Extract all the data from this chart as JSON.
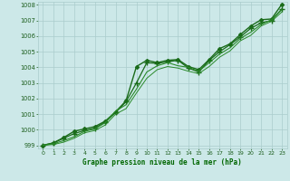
{
  "bg_color": "#cce8e8",
  "grid_color": "#aacccc",
  "text_color": "#1a5c1a",
  "label_color": "#006600",
  "xlim": [
    -0.5,
    23.5
  ],
  "ylim": [
    998.8,
    1008.2
  ],
  "yticks": [
    999,
    1000,
    1001,
    1002,
    1003,
    1004,
    1005,
    1006,
    1007,
    1008
  ],
  "xticks": [
    0,
    1,
    2,
    3,
    4,
    5,
    6,
    7,
    8,
    9,
    10,
    11,
    12,
    13,
    14,
    15,
    16,
    17,
    18,
    19,
    20,
    21,
    22,
    23
  ],
  "xlabel": "Graphe pression niveau de la mer (hPa)",
  "series": [
    {
      "x": [
        0,
        1,
        2,
        3,
        4,
        5,
        6,
        7,
        8,
        9,
        10,
        11,
        12,
        13,
        14,
        15,
        16,
        17,
        18,
        19,
        20,
        21,
        22,
        23
      ],
      "y": [
        999.0,
        999.15,
        999.5,
        999.9,
        1000.05,
        1000.2,
        1000.55,
        1001.15,
        1001.85,
        1004.05,
        1004.45,
        1004.3,
        1004.45,
        1004.5,
        1004.05,
        1003.85,
        1004.5,
        1005.2,
        1005.5,
        1006.1,
        1006.65,
        1007.05,
        1007.1,
        1008.05
      ],
      "color": "#1a6b1a",
      "marker": "D",
      "markersize": 2.0,
      "linewidth": 1.0
    },
    {
      "x": [
        0,
        1,
        2,
        3,
        4,
        5,
        6,
        7,
        8,
        9,
        10,
        11,
        12,
        13,
        14,
        15,
        16,
        17,
        18,
        19,
        20,
        21,
        22,
        23
      ],
      "y": [
        999.0,
        999.15,
        999.45,
        999.75,
        999.95,
        1000.1,
        1000.5,
        1001.1,
        1001.8,
        1003.0,
        1004.3,
        1004.25,
        1004.35,
        1004.45,
        1003.95,
        1003.7,
        1004.45,
        1005.0,
        1005.45,
        1005.95,
        1006.5,
        1006.85,
        1007.0,
        1007.75
      ],
      "color": "#1a6b1a",
      "marker": "+",
      "markersize": 4.0,
      "linewidth": 0.9,
      "markeredgewidth": 1.0
    },
    {
      "x": [
        0,
        1,
        2,
        3,
        4,
        5,
        6,
        7,
        8,
        9,
        10,
        11,
        12,
        13,
        14,
        15,
        16,
        17,
        18,
        19,
        20,
        21,
        22,
        23
      ],
      "y": [
        999.0,
        999.1,
        999.3,
        999.55,
        999.9,
        1000.05,
        1000.45,
        1001.2,
        1001.6,
        1002.6,
        1003.7,
        1004.1,
        1004.3,
        1004.1,
        1004.0,
        1003.75,
        1004.3,
        1004.85,
        1005.25,
        1005.85,
        1006.25,
        1006.75,
        1007.05,
        1007.7
      ],
      "color": "#2a8a2a",
      "marker": null,
      "markersize": 0,
      "linewidth": 0.8
    },
    {
      "x": [
        0,
        1,
        2,
        3,
        4,
        5,
        6,
        7,
        8,
        9,
        10,
        11,
        12,
        13,
        14,
        15,
        16,
        17,
        18,
        19,
        20,
        21,
        22,
        23
      ],
      "y": [
        999.0,
        999.05,
        999.2,
        999.45,
        999.8,
        999.95,
        1000.3,
        1001.0,
        1001.35,
        1002.35,
        1003.3,
        1003.85,
        1004.05,
        1003.95,
        1003.75,
        1003.6,
        1004.05,
        1004.65,
        1005.05,
        1005.7,
        1006.05,
        1006.65,
        1006.95,
        1007.55
      ],
      "color": "#2a8a2a",
      "marker": null,
      "markersize": 0,
      "linewidth": 0.7
    }
  ]
}
